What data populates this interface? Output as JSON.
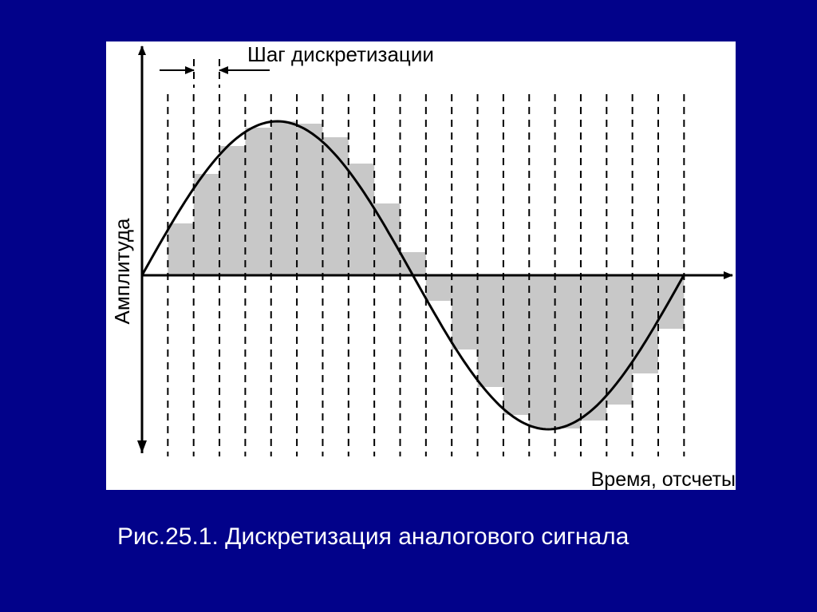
{
  "diagram": {
    "step_label": "Шаг дискретизации",
    "y_axis_label": "Амплитуда",
    "x_axis_label": "Время, отсчеты"
  },
  "caption": "Рис.25.1. Дискретизация аналогового сигнала"
}
